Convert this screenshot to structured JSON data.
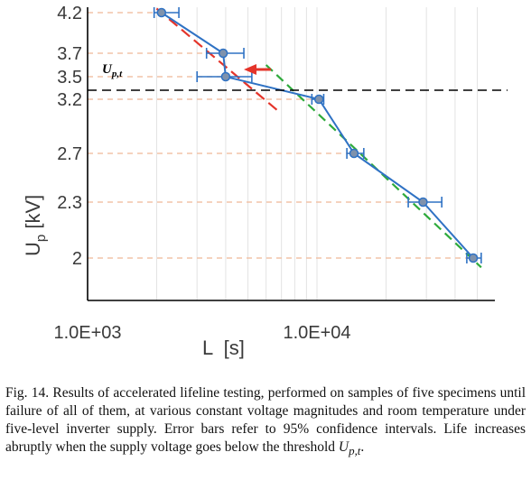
{
  "chart_data": {
    "type": "scatter",
    "xlabel": "L  [s]",
    "ylabel": "U_p [kV]",
    "x_scale": "log",
    "xlim": [
      1000,
      60000
    ],
    "x_ticks": [
      "1.0E+03",
      "1.0E+04"
    ],
    "y_ticks": [
      "4.2",
      "3.7",
      "3.5",
      "3.2",
      "2.7",
      "2.3",
      "2"
    ],
    "grid": "vertical (log minor)",
    "points": [
      {
        "x": 2100,
        "y": 4.2,
        "x_err": [
          1950,
          2500
        ]
      },
      {
        "x": 3900,
        "y": 3.7,
        "x_err": [
          3300,
          4800
        ]
      },
      {
        "x": 4000,
        "y": 3.5,
        "x_err": [
          3000,
          5200
        ]
      },
      {
        "x": 10200,
        "y": 3.2,
        "x_err": [
          9500,
          10700
        ]
      },
      {
        "x": 14500,
        "y": 2.7,
        "x_err": [
          13500,
          16000
        ]
      },
      {
        "x": 29000,
        "y": 2.3,
        "x_err": [
          25000,
          35000
        ]
      },
      {
        "x": 48000,
        "y": 2.0,
        "x_err": [
          45000,
          52000
        ]
      }
    ],
    "fit_low_voltage": {
      "color": "#2eaa3b",
      "x": [
        6000,
        52000
      ],
      "y": [
        3.6,
        1.95
      ]
    },
    "fit_high_voltage": {
      "color": "#e4342a",
      "x": [
        2000,
        6700
      ],
      "y": [
        4.25,
        3.1
      ]
    },
    "threshold": {
      "label": "U_p,t",
      "y": 3.32
    }
  },
  "caption": {
    "lead": "Fig. 14.   Results of accelerated lifeline testing, performed on samples of five specimens until failure of all of them, at various constant voltage magnitudes and room temperature under five-level inverter supply. Error bars refer to 95% confidence intervals. Life increases abruptly when the supply voltage goes below the threshold ",
    "symbol": "U",
    "symbol_sub": "p,t",
    "end": "."
  },
  "colors": {
    "series_line": "#2f72c4",
    "marker_fill": "#7f92ac",
    "marker_edge": "#2f72c4",
    "guide": "#f2c3a8",
    "grid": "#e3e3e3"
  }
}
